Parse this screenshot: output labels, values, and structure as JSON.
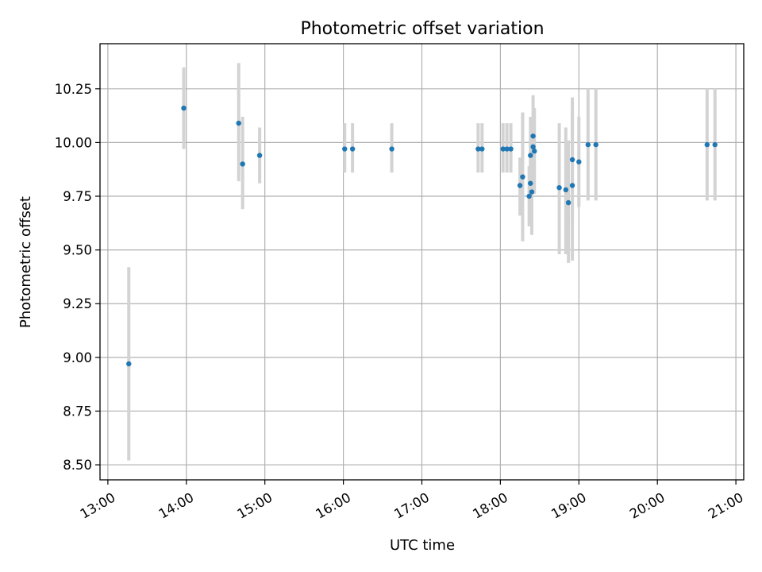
{
  "chart_data": {
    "type": "scatter",
    "title": "Photometric offset variation",
    "xlabel": "UTC time",
    "ylabel": "Photometric offset",
    "xlim": [
      "12:54",
      "21:06"
    ],
    "ylim": [
      8.43,
      10.46
    ],
    "grid": true,
    "x_ticks": [
      "13:00",
      "14:00",
      "15:00",
      "16:00",
      "17:00",
      "18:00",
      "19:00",
      "20:00",
      "21:00"
    ],
    "y_ticks": [
      "8.50",
      "8.75",
      "9.00",
      "9.25",
      "9.50",
      "9.75",
      "10.00",
      "10.25"
    ],
    "series": [
      {
        "points": [
          {
            "x": "13:16",
            "y": 8.97,
            "ylow": 8.52,
            "yhigh": 9.42
          },
          {
            "x": "13:58",
            "y": 10.16,
            "ylow": 9.97,
            "yhigh": 10.35
          },
          {
            "x": "14:40",
            "y": 10.09,
            "ylow": 9.82,
            "yhigh": 10.37
          },
          {
            "x": "14:43",
            "y": 9.9,
            "ylow": 9.69,
            "yhigh": 10.12
          },
          {
            "x": "14:56",
            "y": 9.94,
            "ylow": 9.81,
            "yhigh": 10.07
          },
          {
            "x": "16:01",
            "y": 9.97,
            "ylow": 9.86,
            "yhigh": 10.09
          },
          {
            "x": "16:07",
            "y": 9.97,
            "ylow": 9.86,
            "yhigh": 10.09
          },
          {
            "x": "16:37",
            "y": 9.97,
            "ylow": 9.86,
            "yhigh": 10.09
          },
          {
            "x": "17:43",
            "y": 9.97,
            "ylow": 9.86,
            "yhigh": 10.09
          },
          {
            "x": "17:46",
            "y": 9.97,
            "ylow": 9.86,
            "yhigh": 10.09
          },
          {
            "x": "18:02",
            "y": 9.97,
            "ylow": 9.86,
            "yhigh": 10.09
          },
          {
            "x": "18:05",
            "y": 9.97,
            "ylow": 9.86,
            "yhigh": 10.09
          },
          {
            "x": "18:08",
            "y": 9.97,
            "ylow": 9.86,
            "yhigh": 10.09
          },
          {
            "x": "18:15",
            "y": 9.8,
            "ylow": 9.66,
            "yhigh": 9.93
          },
          {
            "x": "18:17",
            "y": 9.84,
            "ylow": 9.54,
            "yhigh": 10.14
          },
          {
            "x": "18:22",
            "y": 9.75,
            "ylow": 9.61,
            "yhigh": 9.89
          },
          {
            "x": "18:23",
            "y": 9.94,
            "ylow": 9.76,
            "yhigh": 10.12
          },
          {
            "x": "18:23",
            "y": 9.81,
            "ylow": 9.63,
            "yhigh": 10.0
          },
          {
            "x": "18:24",
            "y": 9.77,
            "ylow": 9.57,
            "yhigh": 9.96
          },
          {
            "x": "18:25",
            "y": 10.03,
            "ylow": 9.84,
            "yhigh": 10.22
          },
          {
            "x": "18:25",
            "y": 9.98,
            "ylow": 9.84,
            "yhigh": 10.12
          },
          {
            "x": "18:26",
            "y": 9.96,
            "ylow": 9.76,
            "yhigh": 10.16
          },
          {
            "x": "18:45",
            "y": 9.79,
            "ylow": 9.48,
            "yhigh": 10.09
          },
          {
            "x": "18:50",
            "y": 9.78,
            "ylow": 9.48,
            "yhigh": 10.07
          },
          {
            "x": "18:52",
            "y": 9.72,
            "ylow": 9.44,
            "yhigh": 10.01
          },
          {
            "x": "18:55",
            "y": 9.92,
            "ylow": 9.64,
            "yhigh": 10.21
          },
          {
            "x": "18:55",
            "y": 9.8,
            "ylow": 9.45,
            "yhigh": 10.15
          },
          {
            "x": "19:00",
            "y": 9.91,
            "ylow": 9.7,
            "yhigh": 10.12
          },
          {
            "x": "19:07",
            "y": 9.99,
            "ylow": 9.73,
            "yhigh": 10.25
          },
          {
            "x": "19:13",
            "y": 9.99,
            "ylow": 9.73,
            "yhigh": 10.25
          },
          {
            "x": "20:38",
            "y": 9.99,
            "ylow": 9.73,
            "yhigh": 10.25
          },
          {
            "x": "20:44",
            "y": 9.99,
            "ylow": 9.73,
            "yhigh": 10.25
          }
        ]
      }
    ],
    "colors": {
      "points": "#1f77b4",
      "error_bars": "#d3d3d3",
      "grid": "#b0b0b0"
    }
  }
}
